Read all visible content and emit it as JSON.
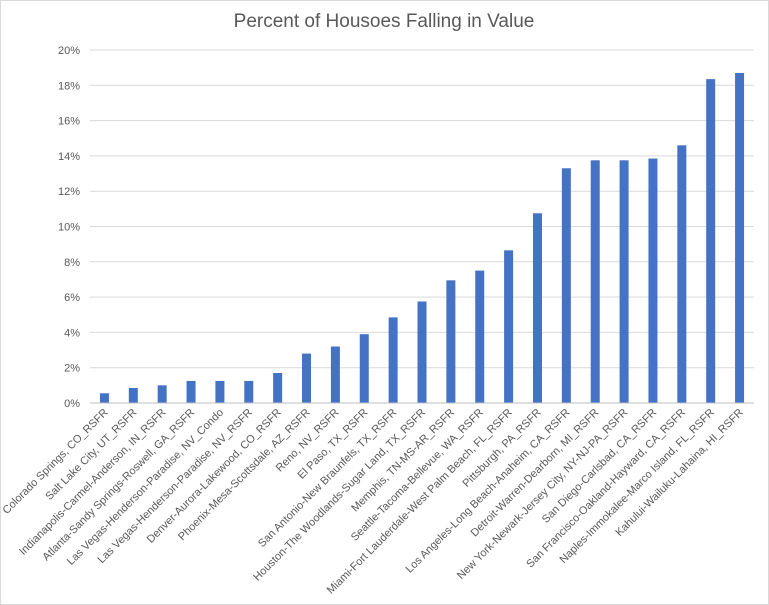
{
  "chart_data": {
    "type": "bar",
    "title": "Percent of Housoes Falling in Value",
    "xlabel": "",
    "ylabel": "",
    "ylim": [
      0,
      20
    ],
    "y_ticks": [
      "0%",
      "2%",
      "4%",
      "6%",
      "8%",
      "10%",
      "12%",
      "14%",
      "16%",
      "18%",
      "20%"
    ],
    "grid": true,
    "bar_color": "#4472c4",
    "categories": [
      "Colorado Springs, CO_RSFR",
      "Salt Lake City, UT_RSFR",
      "Indianapolis-Carmel-Anderson, IN_RSFR",
      "Atlanta-Sandy Springs-Roswell, GA_RSFR",
      "Las Vegas-Henderson-Paradise, NV_Condo",
      "Las Vegas-Henderson-Paradise, NV_RSFR",
      "Denver-Aurora-Lakewood, CO_RSFR",
      "Phoenix-Mesa-Scottsdale, AZ_RSFR",
      "Reno, NV_RSFR",
      "El Paso, TX_RSFR",
      "San Antonio-New Braunfels, TX_RSFR",
      "Houston-The Woodlands-Sugar Land, TX_RSFR",
      "Memphis, TN-MS-AR_RSFR",
      "Seattle-Tacoma-Bellevue, WA_RSFR",
      "Miami-Fort Lauderdale-West Palm Beach, FL_RSFR",
      "Pittsburgh, PA_RSFR",
      "Los Angeles-Long Beach-Anaheim, CA_RSFR",
      "Detroit-Warren-Dearborn, MI_RSFR",
      "New York-Newark-Jersey City, NY-NJ-PA_RSFR",
      "San Diego-Carlsbad, CA_RSFR",
      "San Francisco-Oakland-Hayward, CA_RSFR",
      "Naples-Immokalee-Marco Island, FL_RSFR",
      "Kahului-Wailuku-Lahaina, HI_RSFR"
    ],
    "values": [
      0.55,
      0.85,
      1.0,
      1.25,
      1.25,
      1.25,
      1.7,
      2.8,
      3.2,
      3.9,
      4.85,
      5.75,
      6.95,
      7.5,
      8.65,
      10.75,
      13.3,
      13.75,
      13.75,
      13.85,
      14.6,
      18.35,
      18.7
    ]
  }
}
